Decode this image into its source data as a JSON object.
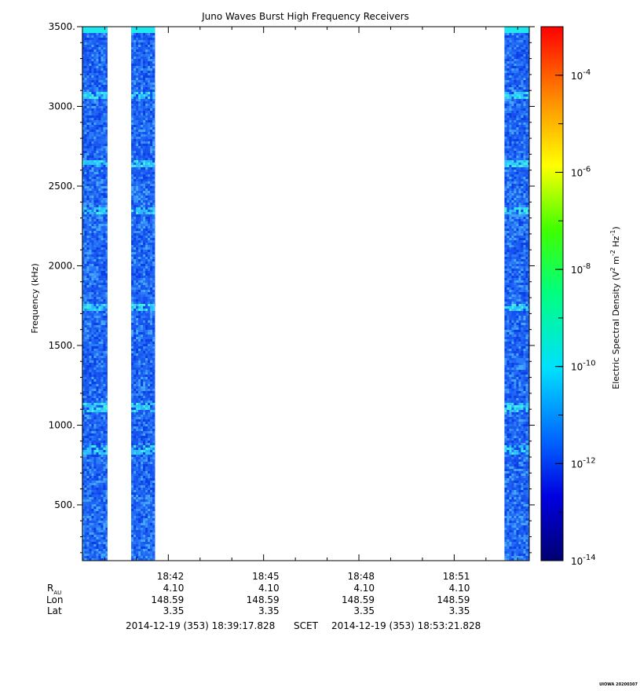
{
  "chart_data": {
    "type": "heatmap",
    "title": "Juno Waves Burst High Frequency Receivers",
    "ylabel": "Frequency (kHz)",
    "ylim": [
      150,
      3500
    ],
    "y_ticks": [
      {
        "value": 500,
        "label": "500."
      },
      {
        "value": 1000,
        "label": "1000."
      },
      {
        "value": 1500,
        "label": "1500."
      },
      {
        "value": 2000,
        "label": "2000."
      },
      {
        "value": 2500,
        "label": "2500."
      },
      {
        "value": 3000,
        "label": "3000."
      },
      {
        "value": 3500,
        "label": "3500."
      }
    ],
    "x_ticks": [
      {
        "time": "18:42",
        "rau": "4.10",
        "lon": "148.59",
        "lat": "3.35"
      },
      {
        "time": "18:45",
        "rau": "4.10",
        "lon": "148.59",
        "lat": "3.35"
      },
      {
        "time": "18:48",
        "rau": "4.10",
        "lon": "148.59",
        "lat": "3.35"
      },
      {
        "time": "18:51",
        "rau": "4.10",
        "lon": "148.59",
        "lat": "3.35"
      }
    ],
    "ephemeris_labels": {
      "rau_main": "R",
      "rau_sub": "AU",
      "lon": "Lon",
      "lat": "Lat"
    },
    "time_range": {
      "start": "2014-12-19 (353) 18:39:17.828",
      "label": "SCET",
      "end": "2014-12-19 (353) 18:53:21.828"
    },
    "data_intervals": [
      {
        "start": "18:39:17",
        "end": "18:40:05"
      },
      {
        "start": "18:40:50",
        "end": "18:41:35"
      },
      {
        "start": "18:52:35",
        "end": "18:53:21"
      }
    ],
    "bright_bands_khz": [
      850,
      1120,
      1750,
      2350,
      2650,
      3080
    ],
    "colorbar": {
      "label_main": "Electric Spectral Density (V",
      "label_full": "Electric Spectral Density (V² m⁻² Hz⁻¹)",
      "range_log10": [
        -14,
        -3
      ],
      "ticks": [
        {
          "exp": "-14"
        },
        {
          "exp": "-12"
        },
        {
          "exp": "-10"
        },
        {
          "exp": "-8"
        },
        {
          "exp": "-6"
        },
        {
          "exp": "-4"
        }
      ],
      "colors": [
        "#000080",
        "#0000ff",
        "#0080ff",
        "#00ffff",
        "#00ff00",
        "#ffff00",
        "#ff8000",
        "#ff0000"
      ]
    },
    "credit": "UIOWA 20200307"
  }
}
